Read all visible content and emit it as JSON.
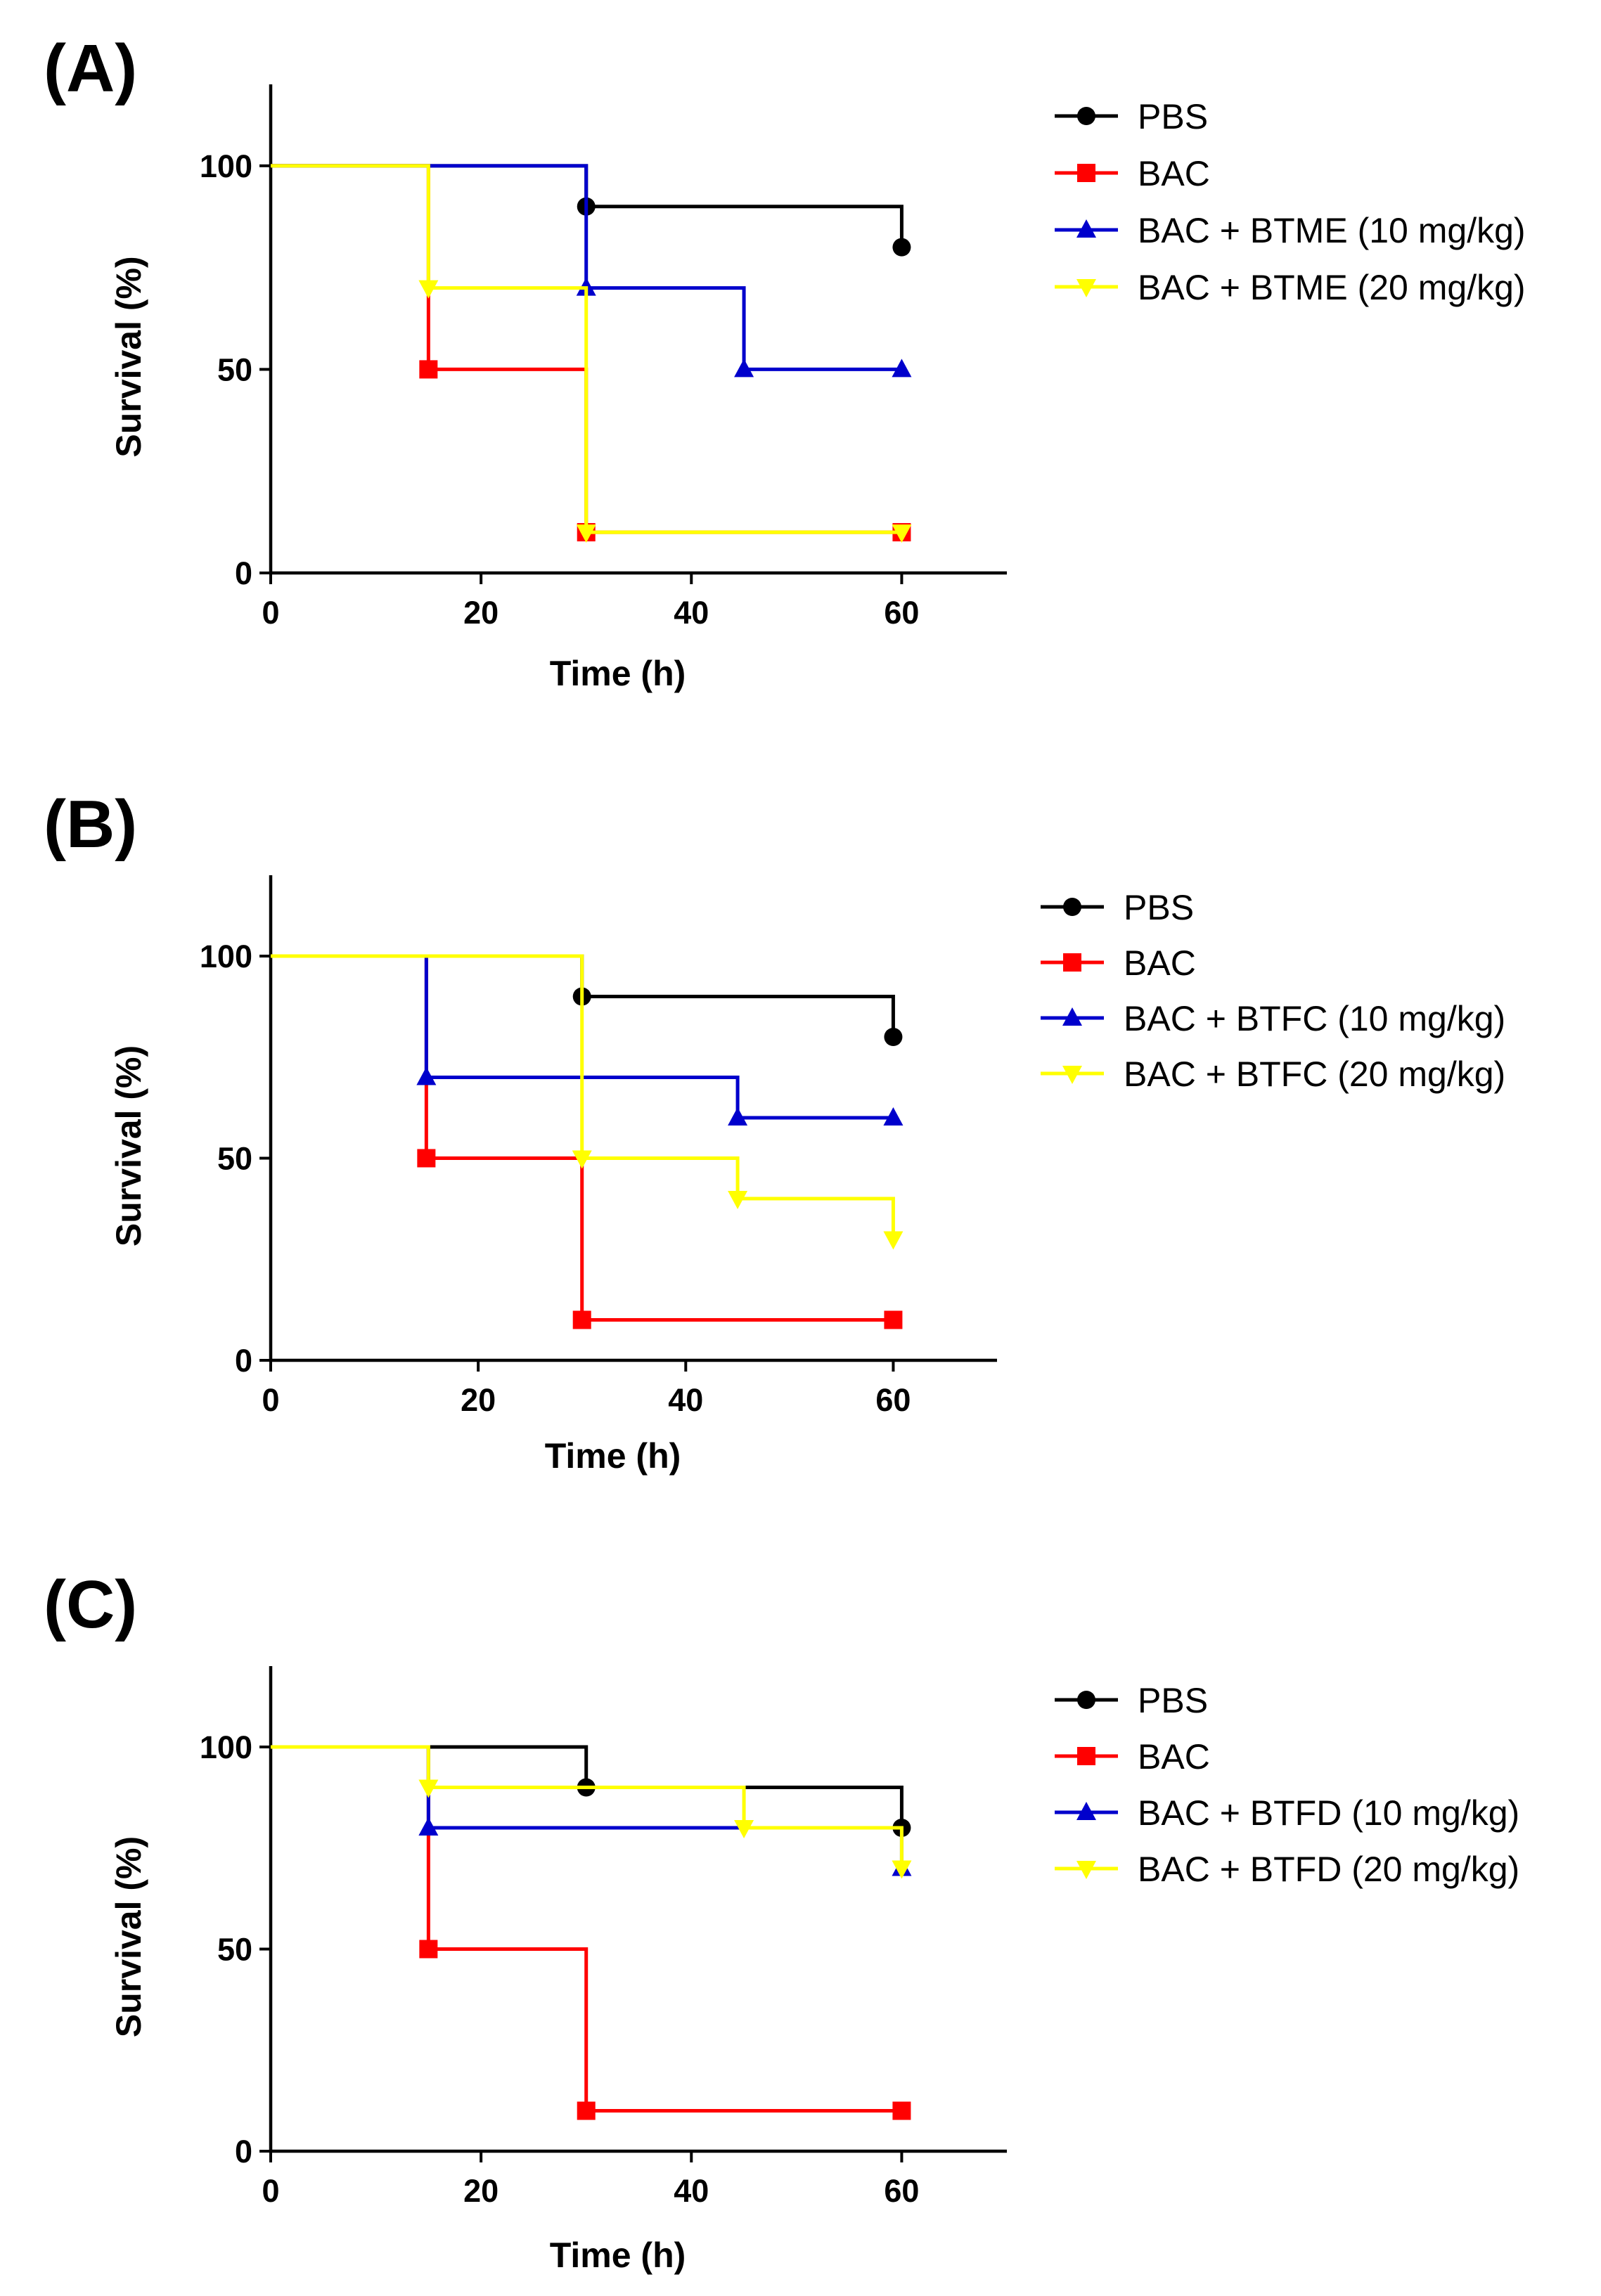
{
  "chart_data": [
    {
      "type": "line",
      "subtype": "kaplan-meier survival step",
      "panel_label": "(A)",
      "xlabel": "Time (h)",
      "ylabel": "Survival (%)",
      "xlim": [
        0,
        70
      ],
      "ylim": [
        0,
        120
      ],
      "xticks": [
        0,
        20,
        40,
        60
      ],
      "yticks": [
        0,
        50,
        100
      ],
      "legend_position": "top-right, outside",
      "series": [
        {
          "name": "PBS",
          "color": "#000000",
          "marker": "circle",
          "x": [
            0,
            30,
            60
          ],
          "y": [
            100,
            90,
            80
          ]
        },
        {
          "name": "BAC",
          "color": "#ff0000",
          "marker": "square",
          "x": [
            0,
            15,
            30,
            60
          ],
          "y": [
            100,
            50,
            10,
            10
          ]
        },
        {
          "name": "BAC + BTME (10 mg/kg)",
          "color": "#0000cc",
          "marker": "triangle-up",
          "x": [
            0,
            30,
            45,
            60
          ],
          "y": [
            100,
            70,
            50,
            50
          ]
        },
        {
          "name": "BAC + BTME (20 mg/kg)",
          "color": "#ffff00",
          "marker": "triangle-down",
          "x": [
            0,
            15,
            30,
            60
          ],
          "y": [
            100,
            70,
            10,
            10
          ]
        }
      ]
    },
    {
      "type": "line",
      "subtype": "kaplan-meier survival step",
      "panel_label": "(B)",
      "xlabel": "Time (h)",
      "ylabel": "Survival (%)",
      "xlim": [
        0,
        70
      ],
      "ylim": [
        0,
        120
      ],
      "xticks": [
        0,
        20,
        40,
        60
      ],
      "yticks": [
        0,
        50,
        100
      ],
      "legend_position": "top-right, outside",
      "series": [
        {
          "name": "PBS",
          "color": "#000000",
          "marker": "circle",
          "x": [
            0,
            30,
            60
          ],
          "y": [
            100,
            90,
            80
          ]
        },
        {
          "name": "BAC",
          "color": "#ff0000",
          "marker": "square",
          "x": [
            0,
            15,
            30,
            60
          ],
          "y": [
            100,
            50,
            10,
            10
          ]
        },
        {
          "name": "BAC + BTFC (10 mg/kg)",
          "color": "#0000cc",
          "marker": "triangle-up",
          "x": [
            0,
            15,
            45,
            60
          ],
          "y": [
            100,
            70,
            60,
            60
          ]
        },
        {
          "name": "BAC + BTFC (20 mg/kg)",
          "color": "#ffff00",
          "marker": "triangle-down",
          "x": [
            0,
            30,
            45,
            60
          ],
          "y": [
            100,
            50,
            40,
            30
          ]
        }
      ]
    },
    {
      "type": "line",
      "subtype": "kaplan-meier survival step",
      "panel_label": "(C)",
      "xlabel": "Time (h)",
      "ylabel": "Survival (%)",
      "xlim": [
        0,
        70
      ],
      "ylim": [
        0,
        120
      ],
      "xticks": [
        0,
        20,
        40,
        60
      ],
      "yticks": [
        0,
        50,
        100
      ],
      "legend_position": "top-right, outside",
      "series": [
        {
          "name": "PBS",
          "color": "#000000",
          "marker": "circle",
          "x": [
            0,
            30,
            60
          ],
          "y": [
            100,
            90,
            80
          ]
        },
        {
          "name": "BAC",
          "color": "#ff0000",
          "marker": "square",
          "x": [
            0,
            15,
            30,
            60
          ],
          "y": [
            100,
            50,
            10,
            10
          ]
        },
        {
          "name": "BAC + BTFD (10 mg/kg)",
          "color": "#0000cc",
          "marker": "triangle-up",
          "x": [
            0,
            15,
            60
          ],
          "y": [
            100,
            80,
            70
          ]
        },
        {
          "name": "BAC + BTFD (20 mg/kg)",
          "color": "#ffff00",
          "marker": "triangle-down",
          "x": [
            0,
            15,
            45,
            60
          ],
          "y": [
            100,
            90,
            80,
            70
          ]
        }
      ]
    }
  ]
}
